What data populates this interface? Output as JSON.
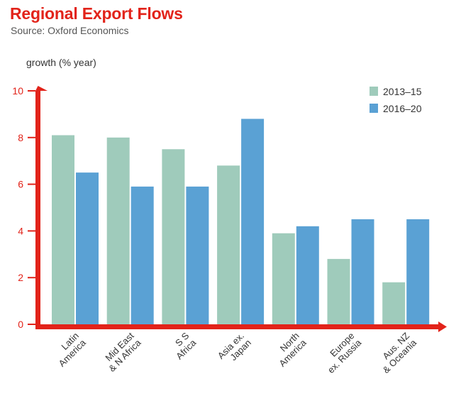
{
  "title": "Regional Export Flows",
  "subtitle": "Source: Oxford Economics",
  "chart_data": {
    "type": "bar",
    "ylabel": "growth (% year)",
    "ylim": [
      0,
      10
    ],
    "yticks": [
      "0",
      "2",
      "4",
      "6",
      "8",
      "10"
    ],
    "categories": [
      [
        "Latin",
        "America"
      ],
      [
        "Mid East",
        "& N Africa"
      ],
      [
        "S S",
        "Africa"
      ],
      [
        "Asia ex.",
        "Japan"
      ],
      [
        "North",
        "America"
      ],
      [
        "Europe",
        "ex. Russia"
      ],
      [
        "Aus. NZ",
        "& Oceania"
      ]
    ],
    "series": [
      {
        "name": "2013–15",
        "color": "#9fcbbb",
        "values": [
          8.1,
          8.0,
          7.5,
          6.8,
          3.9,
          2.8,
          1.8
        ]
      },
      {
        "name": "2016–20",
        "color": "#5aa1d4",
        "values": [
          6.5,
          5.9,
          5.9,
          8.8,
          4.2,
          4.5,
          4.5
        ]
      }
    ],
    "legend_position": "top-right",
    "grid": false,
    "axis_color": "#e2231a"
  }
}
